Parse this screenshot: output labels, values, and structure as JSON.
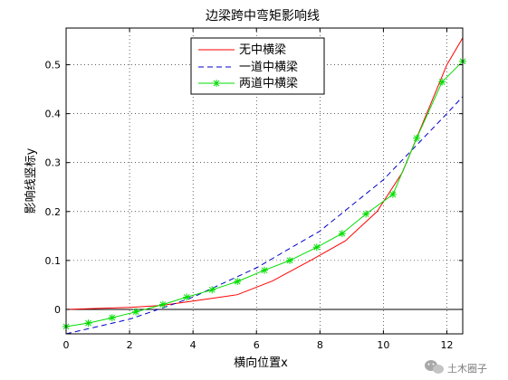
{
  "chart_data": {
    "type": "line",
    "title": "边梁跨中弯矩影响线",
    "xlabel": "横向位置x",
    "ylabel": "影响线竖标y",
    "xlim": [
      0,
      12.5
    ],
    "ylim": [
      -0.05,
      0.575
    ],
    "x_ticks": [
      0,
      2,
      4,
      6,
      8,
      10,
      12
    ],
    "y_ticks": [
      0,
      0.1,
      0.2,
      0.3,
      0.4,
      0.5
    ],
    "x_tick_labels": [
      "0",
      "2",
      "4",
      "6",
      "8",
      "10",
      "12"
    ],
    "y_tick_labels": [
      "0",
      "0.1",
      "0.2",
      "0.3",
      "0.4",
      "0.5"
    ],
    "grid": true,
    "legend_position": "top-center",
    "series": [
      {
        "name": "无中横梁",
        "color": "#ff0000",
        "style": "solid",
        "marker": "none",
        "x": [
          0,
          1,
          2,
          3,
          4,
          5.4,
          6.5,
          7.7,
          8.8,
          9.8,
          10.6,
          11.3,
          12,
          12.5
        ],
        "y": [
          0.0,
          0.002,
          0.004,
          0.008,
          0.017,
          0.03,
          0.058,
          0.1,
          0.14,
          0.2,
          0.28,
          0.39,
          0.5,
          0.555
        ]
      },
      {
        "name": "一道中横梁",
        "color": "#0000cc",
        "style": "dashed",
        "marker": "none",
        "x": [
          0,
          2,
          3,
          4,
          6,
          8,
          10,
          12,
          12.5
        ],
        "y": [
          -0.05,
          -0.02,
          0.002,
          0.025,
          0.085,
          0.16,
          0.265,
          0.4,
          0.435
        ]
      },
      {
        "name": "两道中横梁",
        "color": "#00dd00",
        "style": "solid",
        "marker": "asterisk",
        "x": [
          0,
          0.7,
          1.45,
          2.2,
          3.05,
          3.8,
          4.6,
          5.4,
          6.25,
          7.05,
          7.9,
          8.7,
          9.45,
          10.3,
          11.05,
          11.85,
          12.5
        ],
        "y": [
          -0.035,
          -0.028,
          -0.017,
          -0.005,
          0.01,
          0.025,
          0.04,
          0.057,
          0.08,
          0.1,
          0.127,
          0.155,
          0.195,
          0.235,
          0.35,
          0.465,
          0.507
        ]
      }
    ]
  },
  "watermark": {
    "text": "土木圈子",
    "icon": "wechat-icon"
  }
}
